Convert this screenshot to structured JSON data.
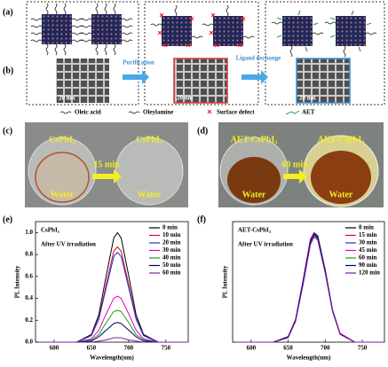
{
  "schematic": {
    "labels": [
      "(a)",
      "(b)"
    ],
    "arrows": [
      "Purification",
      "Ligand exchange"
    ],
    "scale_bars": [
      "20 nm",
      "20 nm",
      "20 nm"
    ],
    "legend": [
      "Oleic acid",
      "Oleylamine",
      "Surface defect",
      "AET"
    ]
  },
  "photos": {
    "c": {
      "label": "(c)",
      "before": "CsPbI₃",
      "time": "15 min",
      "after": "CsPbI₃",
      "water": [
        "Water",
        "Water"
      ]
    },
    "d": {
      "label": "(d)",
      "before": "AET-CsPbI₃",
      "time": "60 min",
      "after": "AET-CsPbI₃",
      "water": [
        "Water",
        "Water"
      ]
    }
  },
  "chart_data": [
    {
      "type": "line",
      "panel": "(e)",
      "title": "CsPbI₃",
      "annotation": "After UV irradiation",
      "x_label": "Wavelength(nm)",
      "y_label": "PL Intensity",
      "x": [
        580,
        630,
        650,
        660,
        670,
        680,
        685,
        690,
        700,
        710,
        720,
        740,
        780
      ],
      "xlim": [
        575,
        780
      ],
      "xticks": [
        600,
        650,
        700,
        750
      ],
      "ylim": [
        0,
        1.1
      ],
      "yticks": [
        {
          "value": 0,
          "label": "0.0"
        },
        0.2,
        0.4,
        0.6,
        0.8,
        {
          "value": 1,
          "label": "1.0"
        }
      ],
      "series": [
        {
          "name": "0 min",
          "color": "#000000",
          "values": [
            0,
            0,
            0.07,
            0.25,
            0.61,
            0.95,
            1,
            0.95,
            0.61,
            0.25,
            0.07,
            0,
            0
          ]
        },
        {
          "name": "10 min",
          "color": "#e8001c",
          "values": [
            0,
            0,
            0.06,
            0.22,
            0.53,
            0.83,
            0.87,
            0.83,
            0.53,
            0.22,
            0.06,
            0,
            0
          ]
        },
        {
          "name": "20 min",
          "color": "#1f2fd6",
          "values": [
            0,
            0,
            0.06,
            0.21,
            0.5,
            0.78,
            0.82,
            0.78,
            0.5,
            0.21,
            0.06,
            0,
            0
          ]
        },
        {
          "name": "30 min",
          "color": "#e000c8",
          "values": [
            0,
            0,
            0.03,
            0.11,
            0.26,
            0.4,
            0.42,
            0.4,
            0.26,
            0.11,
            0.03,
            0,
            0
          ]
        },
        {
          "name": "40 min",
          "color": "#1a9e1a",
          "values": [
            0,
            0,
            0.02,
            0.07,
            0.18,
            0.28,
            0.29,
            0.28,
            0.18,
            0.07,
            0.02,
            0,
            0
          ]
        },
        {
          "name": "50 min",
          "color": "#00006e",
          "values": [
            0,
            0,
            0.01,
            0.05,
            0.11,
            0.17,
            0.18,
            0.17,
            0.11,
            0.05,
            0.01,
            0,
            0
          ]
        },
        {
          "name": "60 min",
          "color": "#7a1fa0",
          "values": [
            0,
            0,
            0,
            0.01,
            0.02,
            0.04,
            0.04,
            0.04,
            0.02,
            0.01,
            0,
            0,
            0
          ]
        }
      ]
    },
    {
      "type": "line",
      "panel": "(f)",
      "title": "AET-CsPbI₃",
      "annotation": "After UV irradiation",
      "x_label": "Wavelength(nm)",
      "y_label": "PL Intensity",
      "x": [
        580,
        630,
        650,
        660,
        670,
        680,
        685,
        690,
        700,
        710,
        720,
        740,
        780
      ],
      "xlim": [
        575,
        780
      ],
      "xticks": [
        600,
        650,
        700,
        750
      ],
      "ylim": [
        0,
        1.1
      ],
      "series": [
        {
          "name": "0 min",
          "color": "#000000",
          "values": [
            0,
            0,
            0.05,
            0.2,
            0.55,
            0.93,
            1,
            0.97,
            0.66,
            0.29,
            0.08,
            0,
            0
          ]
        },
        {
          "name": "15 min",
          "color": "#e8001c",
          "values": [
            0,
            0,
            0.05,
            0.2,
            0.54,
            0.92,
            0.99,
            0.96,
            0.65,
            0.29,
            0.08,
            0,
            0
          ]
        },
        {
          "name": "30 min",
          "color": "#1f2fd6",
          "values": [
            0,
            0,
            0.05,
            0.2,
            0.54,
            0.91,
            0.98,
            0.95,
            0.65,
            0.28,
            0.08,
            0,
            0
          ]
        },
        {
          "name": "45 min",
          "color": "#e000c8",
          "values": [
            0,
            0,
            0.05,
            0.21,
            0.56,
            0.94,
            1,
            0.96,
            0.64,
            0.28,
            0.07,
            0,
            0
          ]
        },
        {
          "name": "60 min",
          "color": "#1a9e1a",
          "values": [
            0,
            0,
            0.05,
            0.19,
            0.53,
            0.9,
            0.97,
            0.94,
            0.64,
            0.28,
            0.08,
            0,
            0
          ]
        },
        {
          "name": "90 min",
          "color": "#00006e",
          "values": [
            0,
            0,
            0.05,
            0.2,
            0.55,
            0.92,
            0.99,
            0.96,
            0.65,
            0.29,
            0.08,
            0,
            0
          ]
        },
        {
          "name": "120 min",
          "color": "#7a1fa0",
          "values": [
            0,
            0,
            0.04,
            0.19,
            0.52,
            0.89,
            0.96,
            0.93,
            0.63,
            0.28,
            0.08,
            0,
            0
          ]
        }
      ]
    }
  ]
}
